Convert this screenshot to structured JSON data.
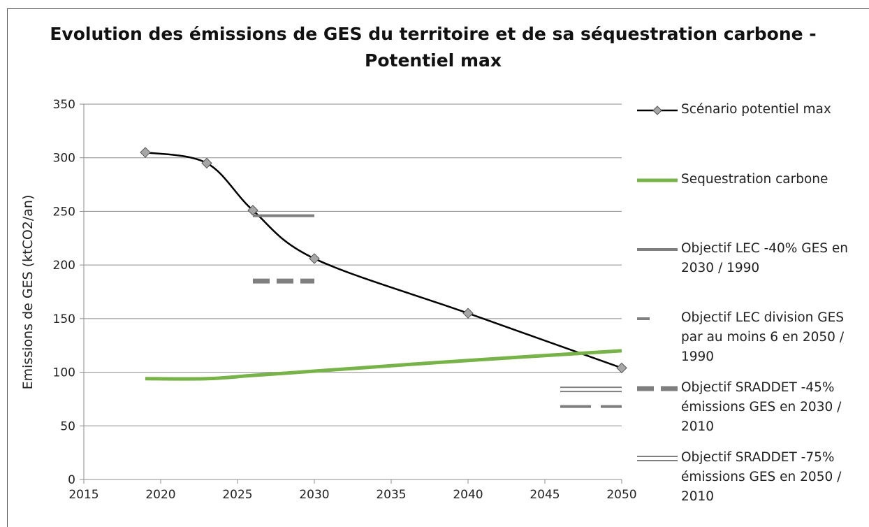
{
  "chart_data": {
    "type": "line",
    "title": "Evolution des émissions de GES du territoire et de sa séquestration carbone - Potentiel max",
    "y_label": "Emissions de GES (ktCO2/an)",
    "xlim": [
      2015,
      2050
    ],
    "xticks": [
      2015,
      2020,
      2025,
      2030,
      2035,
      2040,
      2045,
      2050
    ],
    "ylim": [
      0,
      350
    ],
    "yticks": [
      0,
      50,
      100,
      150,
      200,
      250,
      300,
      350
    ],
    "grid": true,
    "legend": "right",
    "series": [
      {
        "name": "Scénario potentiel max",
        "color": "#000000",
        "style": "solid",
        "marker": "diamond",
        "smooth": true,
        "x": [
          2019,
          2023,
          2026,
          2030,
          2040,
          2050
        ],
        "values": [
          305,
          295,
          251,
          206,
          155,
          104
        ]
      },
      {
        "name": "Sequestration carbone",
        "color": "#77b348",
        "style": "thick",
        "smooth": true,
        "x": [
          2019,
          2023,
          2026,
          2030,
          2040,
          2050
        ],
        "values": [
          94,
          94,
          97,
          101,
          111,
          120
        ]
      },
      {
        "name": "Objectif LEC -40% GES en 2030 / 1990",
        "color": "#7f7f7f",
        "style": "solid",
        "x": [
          2026,
          2030
        ],
        "values": [
          246,
          246
        ]
      },
      {
        "name": "Objectif LEC division GES par au moins 6 en 2050 / 1990",
        "color": "#7f7f7f",
        "style": "dashed",
        "x": [
          2046,
          2050
        ],
        "values": [
          68,
          68
        ]
      },
      {
        "name": "Objectif SRADDET -45% émissions GES en 2030 / 2010",
        "color": "#7f7f7f",
        "style": "thick-dashed",
        "x": [
          2026,
          2030
        ],
        "values": [
          185,
          185
        ]
      },
      {
        "name": "Objectif SRADDET -75% émissions GES en 2050 / 2010",
        "color": "#7f7f7f",
        "style": "double",
        "x": [
          2046,
          2050
        ],
        "values": [
          84,
          84
        ]
      }
    ]
  }
}
